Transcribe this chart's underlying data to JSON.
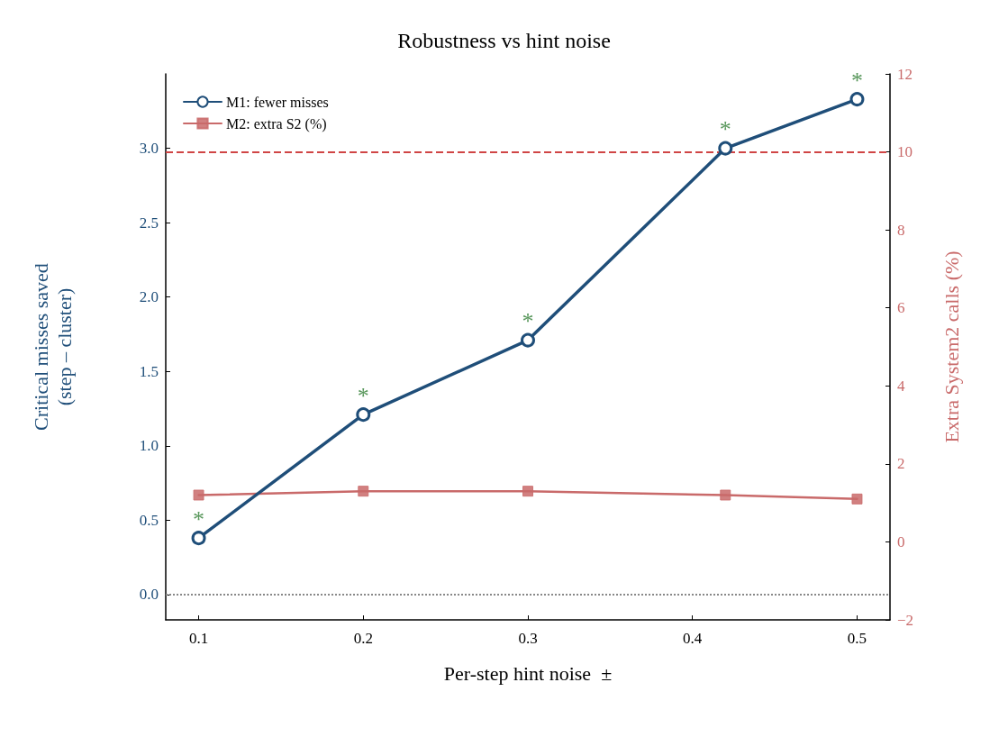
{
  "chart_data": {
    "type": "line",
    "title": "Robustness vs hint noise",
    "xlabel": "Per-step hint noise  ±",
    "ylabel": "Critical misses saved\n(step – cluster)",
    "y2label": "Extra System2 calls (%)",
    "x": [
      0.1,
      0.2,
      0.3,
      0.42,
      0.5
    ],
    "series": [
      {
        "name": "M1: fewer misses",
        "color": "#1f4e79",
        "marker": "circle",
        "values": [
          0.38,
          1.21,
          1.71,
          3.0,
          3.33
        ]
      },
      {
        "name": "M2: extra S2 (%)",
        "color": "#c96a6a",
        "marker": "square",
        "axis": "y2",
        "values": [
          1.2,
          1.3,
          1.3,
          1.2,
          1.1
        ]
      }
    ],
    "xlim": [
      0.08,
      0.52
    ],
    "xticks": [
      0.1,
      0.2,
      0.3,
      0.4,
      0.5
    ],
    "ylim": [
      -0.17,
      3.5
    ],
    "yticks": [
      {
        "value": 0,
        "label": "0.0"
      },
      0.5,
      {
        "value": 1,
        "label": "1.0"
      },
      1.5,
      {
        "value": 2,
        "label": "2.0"
      },
      2.5,
      {
        "value": 3,
        "label": "3.0"
      }
    ],
    "y2lim": [
      -2,
      12
    ],
    "y2ticks": [
      {
        "value": -2,
        "label": "−2"
      },
      0,
      2,
      4,
      6,
      8,
      10,
      12
    ],
    "ref_lines": [
      {
        "axis": "y2",
        "value": 10,
        "color": "#d04545",
        "line_style": "dashed"
      },
      {
        "axis": "y",
        "value": 0,
        "color": "#888888",
        "line_style": "dotted"
      }
    ],
    "annotations": [
      {
        "text": "*",
        "x": 0.1,
        "y": 0.38
      },
      {
        "text": "*",
        "x": 0.2,
        "y": 1.21
      },
      {
        "text": "*",
        "x": 0.3,
        "y": 1.71
      },
      {
        "text": "*",
        "x": 0.42,
        "y": 3.0
      },
      {
        "text": "*",
        "x": 0.5,
        "y": 3.33
      }
    ],
    "grid": false,
    "legend": "top left",
    "line_style": "solid"
  }
}
